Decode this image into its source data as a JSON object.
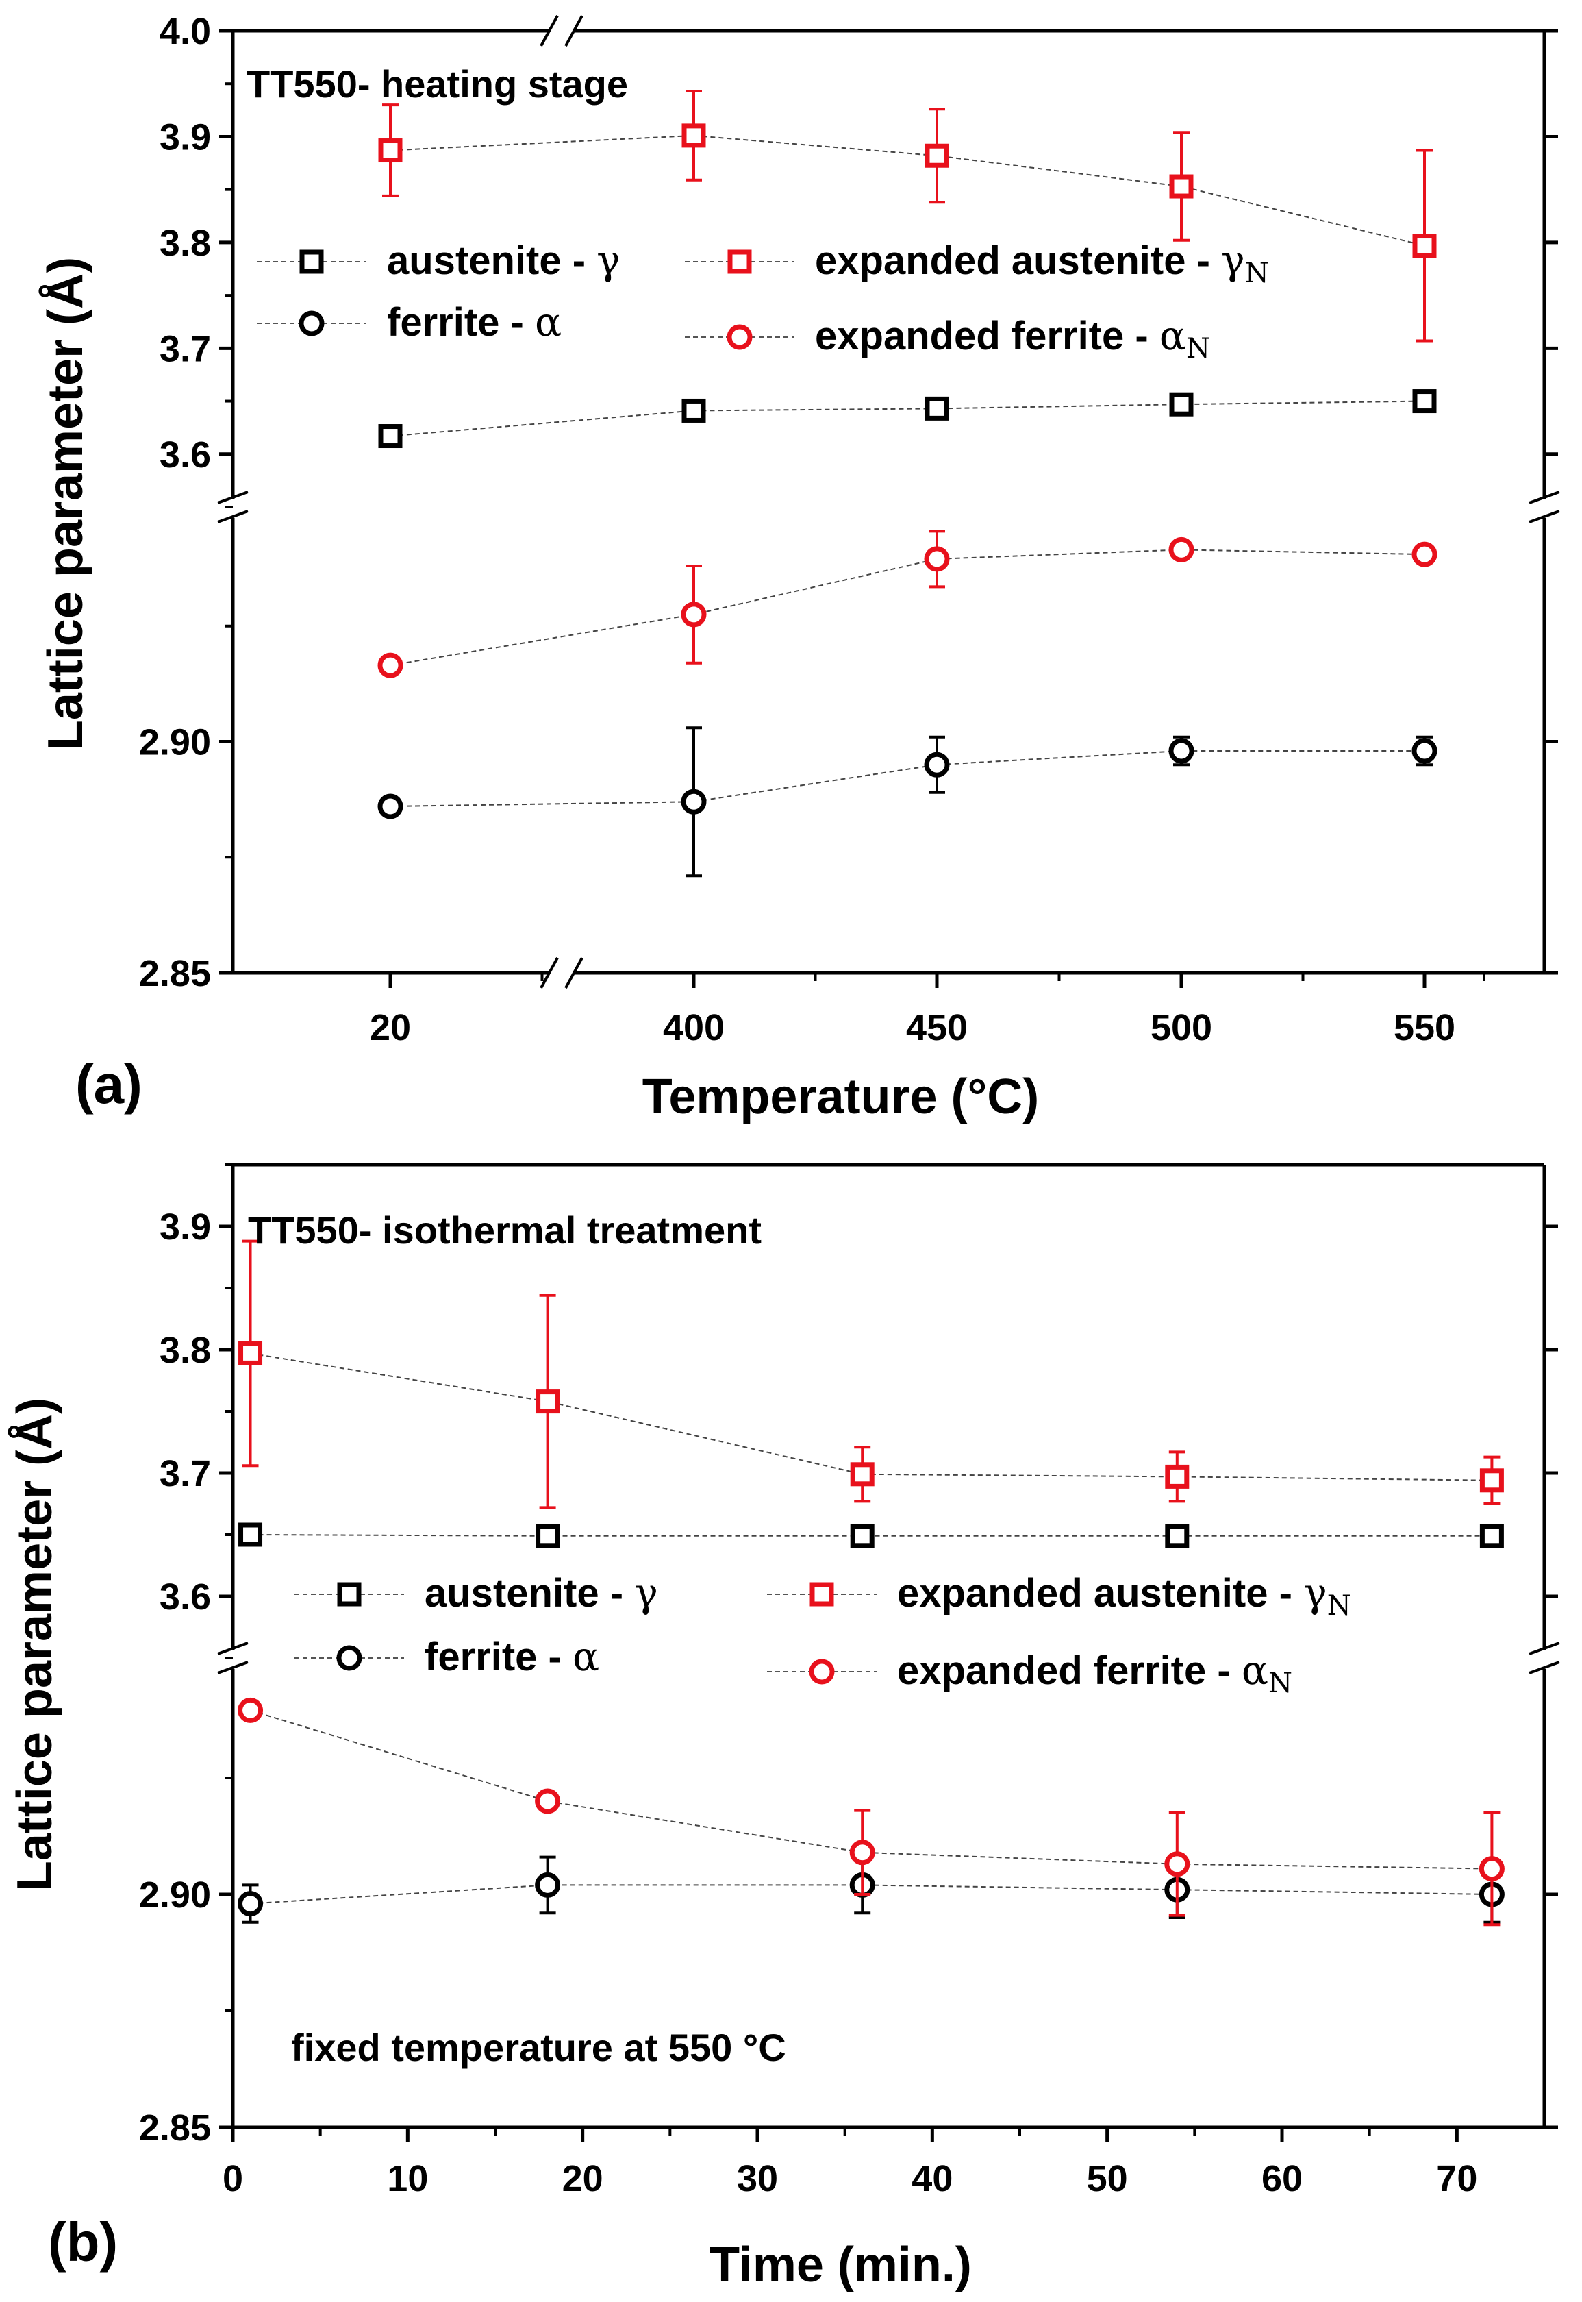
{
  "chart_data": [
    {
      "type": "scatter",
      "panel_label": "(a)",
      "annotation": "TT550- heating stage",
      "xlabel": "Temperature (°C)",
      "ylabel": "Lattice parameter (Å)",
      "x": [
        20,
        400,
        450,
        500,
        550
      ],
      "x_tick_labels": [
        "20",
        "400",
        "450",
        "500",
        "550"
      ],
      "y_upper_ticks": [
        "3.6",
        "3.7",
        "3.8",
        "3.9",
        "4.0"
      ],
      "y_lower_ticks": [
        "2.85",
        "2.90"
      ],
      "y_upper_range": [
        3.55,
        4.0
      ],
      "y_lower_range": [
        2.85,
        2.95
      ],
      "axis_break_y": true,
      "axis_break_x": "between 20 and 400",
      "legend": {
        "position": "upper-middle",
        "entries": [
          {
            "series": "austenite",
            "text": "austenite - ",
            "sym": "γ",
            "sub": ""
          },
          {
            "series": "expanded_austenite",
            "text": "expanded austenite - ",
            "sym": "γ",
            "sub": "N"
          },
          {
            "series": "ferrite",
            "text": "ferrite - ",
            "sym": "α",
            "sub": ""
          },
          {
            "series": "expanded_ferrite",
            "text": "expanded ferrite - ",
            "sym": "α",
            "sub": "N"
          }
        ]
      },
      "series": [
        {
          "name": "austenite - γ",
          "key": "austenite",
          "marker": "square",
          "color": "#000000",
          "values": [
            3.617,
            3.641,
            3.643,
            3.647,
            3.65
          ],
          "errors": [
            0.005,
            0.005,
            0.005,
            0.005,
            0.005
          ]
        },
        {
          "name": "expanded austenite - γN",
          "key": "expanded_austenite",
          "marker": "square",
          "color": "#e8111c",
          "values": [
            3.887,
            3.901,
            3.882,
            3.853,
            3.797
          ],
          "errors": [
            0.043,
            0.042,
            0.044,
            0.051,
            0.09
          ]
        },
        {
          "name": "ferrite - α",
          "key": "ferrite",
          "marker": "circle",
          "color": "#000000",
          "values": [
            2.886,
            2.887,
            2.895,
            2.898,
            2.898
          ],
          "errors": [
            0.0008,
            0.016,
            0.006,
            0.003,
            0.003
          ]
        },
        {
          "name": "expanded ferrite - αN",
          "key": "expanded_ferrite",
          "marker": "circle",
          "color": "#e8111c",
          "values": [
            2.9165,
            2.9275,
            2.9395,
            2.9415,
            2.9405
          ],
          "errors": [
            0.0008,
            0.0105,
            0.006,
            0.0008,
            0.0008
          ]
        }
      ]
    },
    {
      "type": "scatter",
      "panel_label": "(b)",
      "annotation": "TT550- isothermal treatment",
      "annotation2": "fixed temperature at 550 °C",
      "xlabel": "Time (min.)",
      "ylabel": "Lattice parameter (Å)",
      "xlim": [
        0,
        75
      ],
      "x": [
        1,
        18,
        36,
        54,
        72
      ],
      "x_ticks": [
        0,
        10,
        20,
        30,
        40,
        50,
        60,
        70
      ],
      "y_upper_ticks": [
        "3.6",
        "3.7",
        "3.8",
        "3.9"
      ],
      "y_lower_ticks": [
        "2.85",
        "2.90"
      ],
      "y_upper_range": [
        3.55,
        3.95
      ],
      "y_lower_range": [
        2.85,
        2.95
      ],
      "axis_break_y": true,
      "legend": {
        "position": "middle",
        "entries": [
          {
            "series": "austenite",
            "text": "austenite - ",
            "sym": "γ",
            "sub": ""
          },
          {
            "series": "expanded_austenite",
            "text": "expanded austenite - ",
            "sym": "γ",
            "sub": "N"
          },
          {
            "series": "ferrite",
            "text": "ferrite - ",
            "sym": "α",
            "sub": ""
          },
          {
            "series": "expanded_ferrite",
            "text": "expanded ferrite - ",
            "sym": "α",
            "sub": "N"
          }
        ]
      },
      "series": [
        {
          "name": "austenite - γ",
          "key": "austenite",
          "marker": "square",
          "color": "#000000",
          "values": [
            3.65,
            3.649,
            3.649,
            3.649,
            3.649
          ],
          "errors": [
            0.005,
            0.004,
            0.004,
            0.004,
            0.004
          ]
        },
        {
          "name": "expanded austenite - γN",
          "key": "expanded_austenite",
          "marker": "square",
          "color": "#e8111c",
          "values": [
            3.797,
            3.758,
            3.699,
            3.697,
            3.694
          ],
          "errors": [
            0.091,
            0.086,
            0.022,
            0.02,
            0.019
          ]
        },
        {
          "name": "ferrite - α",
          "key": "ferrite",
          "marker": "circle",
          "color": "#000000",
          "values": [
            2.898,
            2.902,
            2.902,
            2.901,
            2.9
          ],
          "errors": [
            0.004,
            0.006,
            0.006,
            0.006,
            0.006
          ]
        },
        {
          "name": "expanded ferrite - αN",
          "key": "expanded_ferrite",
          "marker": "circle",
          "color": "#e8111c",
          "values": [
            2.9395,
            2.92,
            2.909,
            2.9065,
            2.9055
          ],
          "errors": [
            0.0008,
            0.0008,
            0.009,
            0.011,
            0.012
          ]
        }
      ]
    }
  ]
}
